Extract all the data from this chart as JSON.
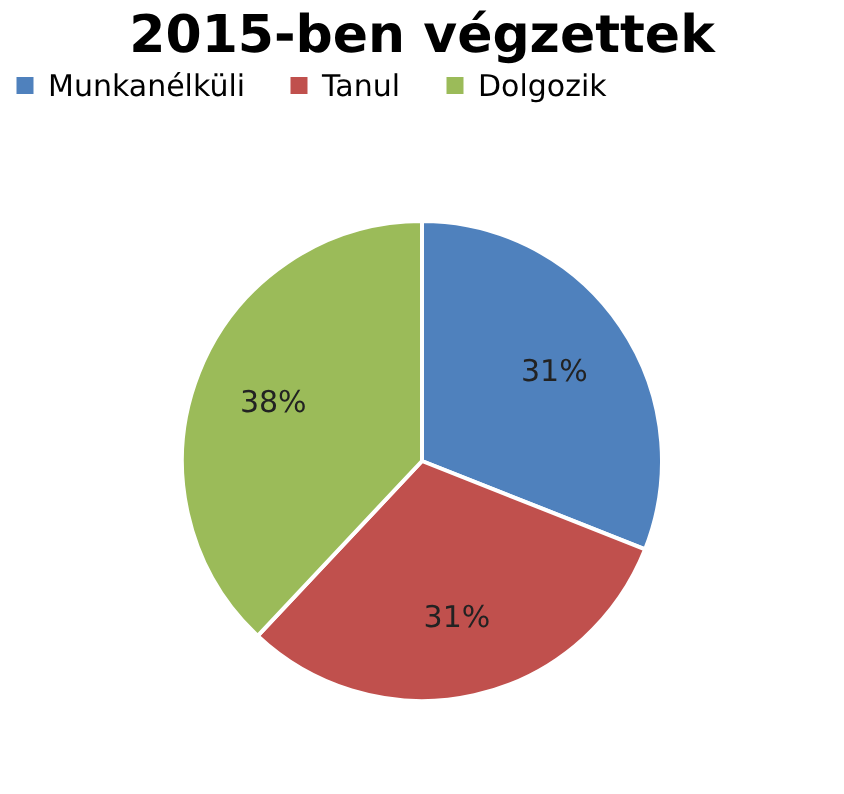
{
  "chart_data": {
    "type": "pie",
    "title": "2015-ben végzettek",
    "categories": [
      "Munkanélküli",
      "Tanul",
      "Dolgozik"
    ],
    "values": [
      31,
      31,
      38
    ],
    "colors": [
      "#4f81bd",
      "#c0504d",
      "#9bbb59"
    ],
    "value_labels": [
      "31%",
      "31%",
      "38%"
    ],
    "legend": "top"
  }
}
